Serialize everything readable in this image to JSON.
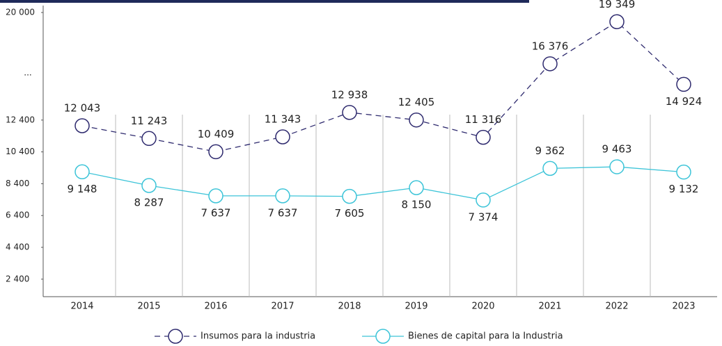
{
  "chart_data": {
    "type": "line",
    "categories": [
      "2014",
      "2015",
      "2016",
      "2017",
      "2018",
      "2019",
      "2020",
      "2021",
      "2022",
      "2023"
    ],
    "series": [
      {
        "name": "Insumos para la industria",
        "color": "#2e2a6e",
        "dashed": true,
        "values": [
          12043,
          11243,
          10409,
          11343,
          12938,
          12405,
          11316,
          16376,
          19349,
          14924
        ],
        "value_labels": [
          "12 043",
          "11 243",
          "10 409",
          "11 343",
          "12 938",
          "12 405",
          "11 316",
          "16 376",
          "19 349",
          "14 924"
        ]
      },
      {
        "name": "Bienes de capital para la Industria",
        "color": "#3cc4d8",
        "dashed": false,
        "values": [
          9148,
          8287,
          7637,
          7637,
          7605,
          8150,
          7374,
          9362,
          9463,
          9132
        ],
        "value_labels": [
          "9 148",
          "8 287",
          "7 637",
          "7 637",
          "7 605",
          "8 150",
          "7 374",
          "9 362",
          "9 463",
          "9 132"
        ]
      }
    ],
    "ylim": [
      1300,
      20000
    ],
    "yticks": [
      {
        "value": 2400,
        "label": "2 400"
      },
      {
        "value": 4400,
        "label": "4 400"
      },
      {
        "value": 6400,
        "label": "6 400"
      },
      {
        "value": 8400,
        "label": "8 400"
      },
      {
        "value": 10400,
        "label": "10 400"
      },
      {
        "value": 12400,
        "label": "12 400"
      },
      {
        "value": 20000,
        "label": "20 000"
      }
    ],
    "axis_break_label": "...",
    "legend": "bottom"
  }
}
